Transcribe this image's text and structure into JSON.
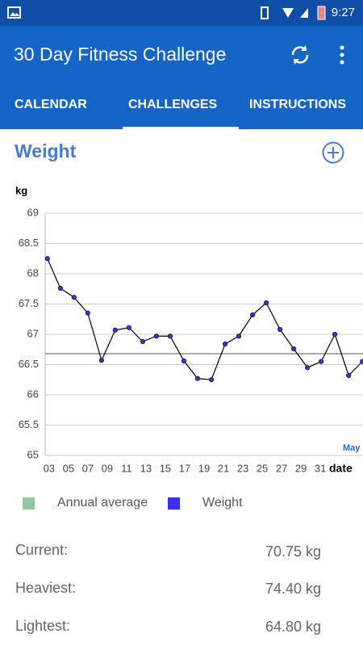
{
  "status_bar": {
    "time": "9:27"
  },
  "app_bar": {
    "title": "30 Day Fitness Challenge"
  },
  "tabs": [
    "CALENDAR",
    "CHALLENGES",
    "INSTRUCTIONS"
  ],
  "section_title": "Weight",
  "chart_data": {
    "type": "line",
    "y_label": "kg",
    "x_label": "date",
    "annotation": "May",
    "xlim": [
      2.6,
      35.4
    ],
    "ylim": [
      65,
      69
    ],
    "xticks": [
      {
        "value": 3,
        "label": "03"
      },
      {
        "value": 5,
        "label": "05"
      },
      {
        "value": 7,
        "label": "07"
      },
      {
        "value": 9,
        "label": "09"
      },
      11,
      13,
      15,
      17,
      19,
      21,
      23,
      25,
      27,
      29,
      31
    ],
    "yticks": [
      65,
      65.5,
      66,
      66.5,
      67,
      67.5,
      68,
      68.5,
      69
    ],
    "grid": true,
    "average": {
      "name": "Annual average",
      "color": "#8fc9a3",
      "line_color": "#555555",
      "value": 66.68
    },
    "series": [
      {
        "name": "Weight",
        "color": "#3b2ff0",
        "line_color": "#000000",
        "x": [
          2.83,
          4.17,
          5.58,
          7.0,
          8.42,
          9.83,
          11.25,
          12.67,
          14.08,
          15.5,
          16.92,
          18.33,
          19.75,
          21.17,
          22.58,
          24.0,
          25.42,
          26.83,
          28.25,
          29.67,
          31.08,
          32.5,
          33.92,
          35.33
        ],
        "values": [
          68.25,
          67.76,
          67.61,
          67.35,
          66.57,
          67.07,
          67.11,
          66.88,
          66.97,
          66.97,
          66.56,
          66.27,
          66.25,
          66.84,
          66.97,
          67.32,
          67.52,
          67.08,
          66.76,
          66.45,
          66.55,
          67.0,
          66.32,
          66.55
        ]
      }
    ]
  },
  "stats": [
    {
      "label": "Current:",
      "value": "70.75 kg"
    },
    {
      "label": "Heaviest:",
      "value": "74.40 kg"
    },
    {
      "label": "Lightest:",
      "value": "64.80 kg"
    }
  ]
}
